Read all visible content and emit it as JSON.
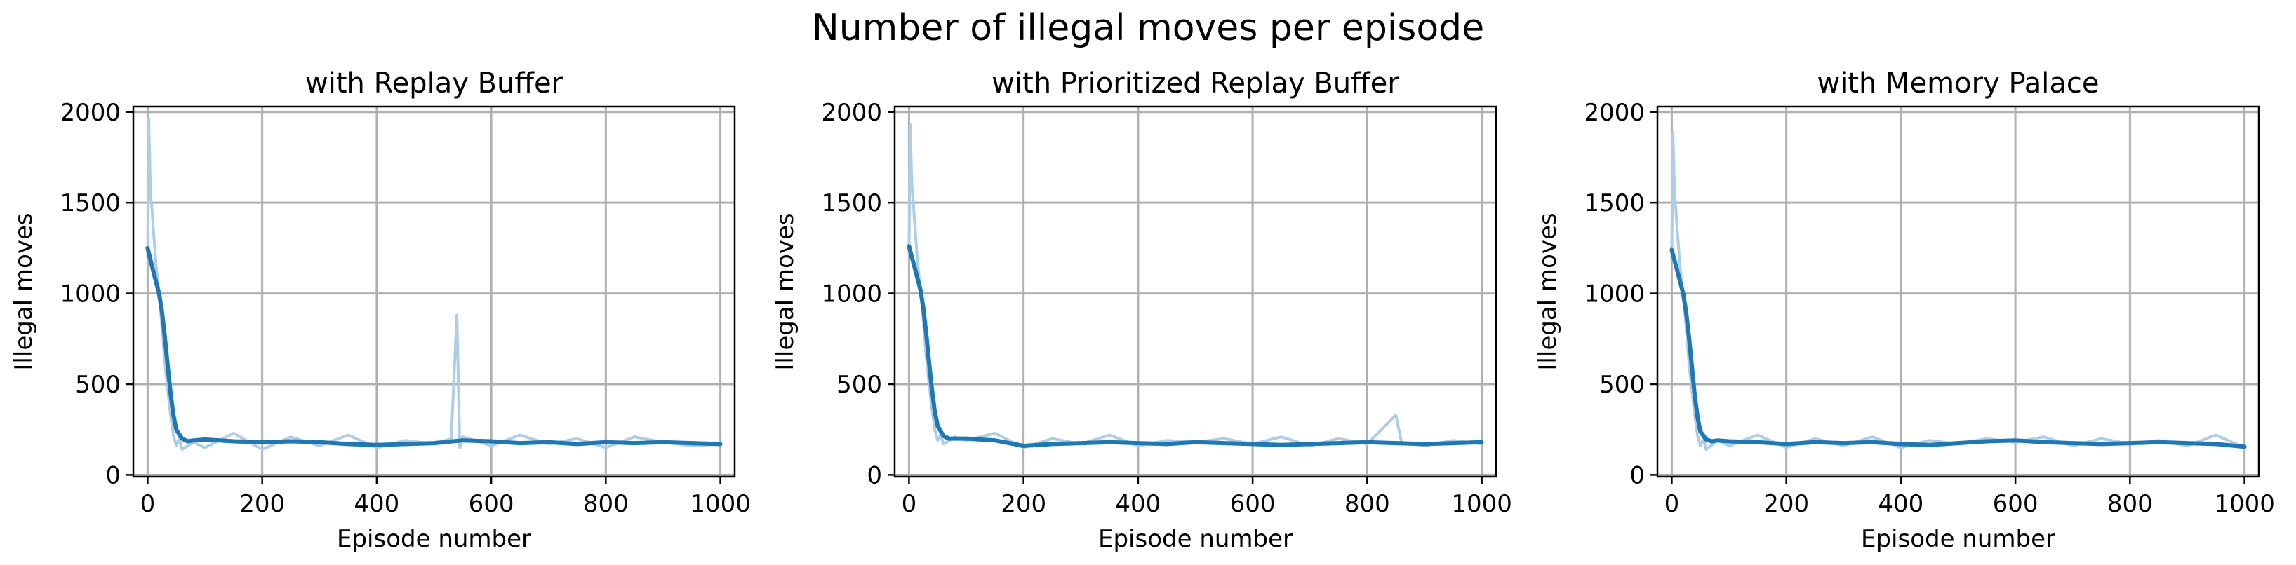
{
  "figure": {
    "suptitle": "Number of illegal moves per episode"
  },
  "colors": {
    "raw": "#aecde6",
    "smooth": "#1f77b4",
    "grid": "#b0b0b0",
    "axes": "#000000"
  },
  "chart_data": [
    {
      "type": "line",
      "title": "with Replay Buffer",
      "xlabel": "Episode number",
      "ylabel": "Illegal moves",
      "xlim": [
        -25,
        1025
      ],
      "ylim": [
        -10,
        2030
      ],
      "xticks": [
        0,
        200,
        400,
        600,
        800,
        1000
      ],
      "yticks": [
        0,
        500,
        1000,
        1500,
        2000
      ],
      "grid": true,
      "raw_series": {
        "x": [
          0,
          2,
          5,
          8,
          10,
          15,
          20,
          25,
          30,
          35,
          40,
          45,
          50,
          55,
          60,
          80,
          100,
          150,
          200,
          250,
          300,
          350,
          400,
          450,
          500,
          530,
          540,
          545,
          550,
          570,
          600,
          650,
          700,
          750,
          800,
          850,
          900,
          950,
          1000
        ],
        "y": [
          1200,
          1960,
          1550,
          1450,
          1350,
          1150,
          1000,
          820,
          620,
          470,
          330,
          220,
          160,
          200,
          140,
          180,
          150,
          230,
          140,
          210,
          160,
          220,
          150,
          190,
          170,
          200,
          880,
          150,
          210,
          190,
          160,
          220,
          170,
          200,
          150,
          210,
          180,
          160,
          170
        ]
      },
      "smooth_series": {
        "x": [
          0,
          10,
          20,
          25,
          30,
          35,
          40,
          45,
          50,
          60,
          70,
          80,
          100,
          150,
          200,
          250,
          300,
          350,
          400,
          450,
          500,
          550,
          600,
          650,
          700,
          750,
          800,
          850,
          900,
          950,
          1000
        ],
        "y": [
          1250,
          1120,
          1000,
          900,
          760,
          600,
          450,
          330,
          250,
          200,
          185,
          190,
          195,
          185,
          180,
          185,
          180,
          170,
          165,
          170,
          175,
          190,
          185,
          175,
          180,
          170,
          180,
          175,
          180,
          175,
          170
        ]
      }
    },
    {
      "type": "line",
      "title": "with Prioritized Replay Buffer",
      "xlabel": "Episode number",
      "ylabel": "Illegal moves",
      "xlim": [
        -25,
        1025
      ],
      "ylim": [
        -10,
        2030
      ],
      "xticks": [
        0,
        200,
        400,
        600,
        800,
        1000
      ],
      "yticks": [
        0,
        500,
        1000,
        1500,
        2000
      ],
      "grid": true,
      "raw_series": {
        "x": [
          0,
          2,
          5,
          8,
          10,
          15,
          20,
          25,
          30,
          35,
          40,
          45,
          50,
          55,
          60,
          80,
          100,
          150,
          200,
          250,
          300,
          350,
          400,
          450,
          500,
          550,
          600,
          650,
          700,
          750,
          800,
          850,
          860,
          900,
          950,
          1000
        ],
        "y": [
          1210,
          1930,
          1600,
          1480,
          1380,
          1170,
          1020,
          850,
          650,
          500,
          360,
          250,
          190,
          220,
          170,
          210,
          190,
          230,
          150,
          200,
          170,
          220,
          160,
          190,
          180,
          200,
          170,
          210,
          160,
          200,
          170,
          330,
          180,
          160,
          190,
          170
        ]
      },
      "smooth_series": {
        "x": [
          0,
          10,
          20,
          25,
          30,
          35,
          40,
          45,
          50,
          60,
          70,
          80,
          100,
          150,
          200,
          250,
          300,
          350,
          400,
          450,
          500,
          550,
          600,
          650,
          700,
          750,
          800,
          850,
          900,
          950,
          1000
        ],
        "y": [
          1260,
          1140,
          1020,
          920,
          780,
          620,
          470,
          350,
          270,
          215,
          200,
          200,
          200,
          190,
          160,
          170,
          175,
          180,
          175,
          170,
          180,
          175,
          170,
          165,
          170,
          175,
          180,
          175,
          170,
          175,
          180
        ]
      }
    },
    {
      "type": "line",
      "title": "with Memory Palace",
      "xlabel": "Episode number",
      "ylabel": "Illegal moves",
      "xlim": [
        -25,
        1025
      ],
      "ylim": [
        -10,
        2030
      ],
      "xticks": [
        0,
        200,
        400,
        600,
        800,
        1000
      ],
      "yticks": [
        0,
        500,
        1000,
        1500,
        2000
      ],
      "grid": true,
      "raw_series": {
        "x": [
          0,
          2,
          5,
          8,
          10,
          15,
          20,
          25,
          30,
          35,
          40,
          45,
          50,
          55,
          60,
          80,
          100,
          150,
          200,
          250,
          300,
          350,
          400,
          450,
          500,
          550,
          600,
          650,
          700,
          750,
          800,
          850,
          900,
          950,
          1000
        ],
        "y": [
          1180,
          1890,
          1550,
          1430,
          1330,
          1130,
          990,
          820,
          620,
          470,
          330,
          220,
          160,
          200,
          140,
          190,
          160,
          220,
          150,
          200,
          160,
          210,
          150,
          190,
          170,
          200,
          180,
          210,
          160,
          200,
          170,
          190,
          160,
          220,
          150
        ]
      },
      "smooth_series": {
        "x": [
          0,
          10,
          20,
          25,
          30,
          35,
          40,
          45,
          50,
          60,
          70,
          80,
          100,
          150,
          200,
          250,
          300,
          350,
          400,
          450,
          500,
          550,
          600,
          650,
          700,
          750,
          800,
          850,
          900,
          950,
          1000
        ],
        "y": [
          1240,
          1120,
          1000,
          900,
          760,
          600,
          440,
          320,
          240,
          195,
          185,
          190,
          185,
          180,
          170,
          180,
          175,
          180,
          170,
          165,
          175,
          185,
          190,
          180,
          175,
          170,
          175,
          180,
          175,
          170,
          155
        ]
      }
    }
  ]
}
